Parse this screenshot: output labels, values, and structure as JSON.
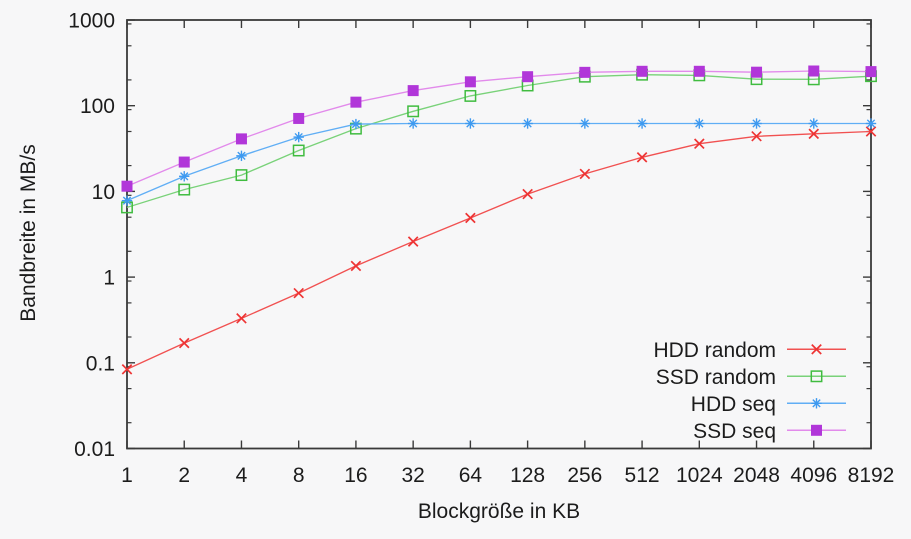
{
  "page": {
    "background_color": "#f7f7f8",
    "axis_color": "#3a3a3a",
    "text_color": "#1c1c1c"
  },
  "chart_data": {
    "type": "line",
    "title": "",
    "xlabel": "Blockgröße in KB",
    "ylabel": "Bandbreite in MB/s",
    "x_scale": "log2",
    "y_scale": "log10",
    "xlim": [
      1,
      8192
    ],
    "ylim": [
      0.01,
      1000
    ],
    "grid": false,
    "x": [
      1,
      2,
      4,
      8,
      16,
      32,
      64,
      128,
      256,
      512,
      1024,
      2048,
      4096,
      8192
    ],
    "x_tick_labels": [
      "1",
      "2",
      "4",
      "8",
      "16",
      "32",
      "64",
      "128",
      "256",
      "512",
      "1024",
      "2048",
      "4096",
      "8192"
    ],
    "y_major_ticks": [
      {
        "value": 1000,
        "label": "1000"
      },
      {
        "value": 100,
        "label": "100"
      },
      {
        "value": 10,
        "label": "10"
      },
      {
        "value": 1,
        "label": "1"
      },
      {
        "value": 0.1,
        "label": "0.1"
      },
      {
        "value": 0.01,
        "label": "0.01"
      }
    ],
    "y_minor_tick_values": [
      900,
      500,
      200,
      90,
      50,
      20,
      9,
      5,
      2,
      0.9,
      0.5,
      0.2,
      0.09,
      0.05,
      0.02
    ],
    "series": [
      {
        "name": "HDD random",
        "marker": "cross",
        "line_color": "#f15151",
        "marker_color": "#ee3434",
        "values": [
          0.084,
          0.17,
          0.33,
          0.65,
          1.35,
          2.6,
          4.9,
          9.3,
          16,
          25,
          36,
          44,
          47,
          50
        ]
      },
      {
        "name": "SSD random",
        "marker": "open-square",
        "line_color": "#79d279",
        "marker_color": "#40bc40",
        "values": [
          6.5,
          10.5,
          15.5,
          30,
          54,
          86,
          130,
          172,
          218,
          230,
          226,
          204,
          203,
          221
        ]
      },
      {
        "name": "HDD seq",
        "marker": "asterisk",
        "line_color": "#60aef5",
        "marker_color": "#3e9af0",
        "values": [
          7.8,
          15,
          26,
          43,
          61,
          62,
          62,
          62,
          62,
          62,
          62,
          62,
          62,
          62
        ]
      },
      {
        "name": "SSD seq",
        "marker": "filled-square",
        "line_color": "#e28aeb",
        "marker_color": "#b136d9",
        "values": [
          11.5,
          22,
          41,
          71,
          110,
          150,
          190,
          218,
          245,
          252,
          252,
          246,
          254,
          250
        ]
      }
    ],
    "legend": {
      "position": "inside-bottom-right",
      "entries": [
        "HDD random",
        "SSD random",
        "HDD seq",
        "SSD seq"
      ]
    }
  }
}
